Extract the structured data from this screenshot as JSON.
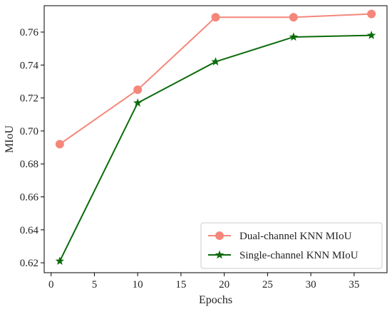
{
  "chart_data": {
    "type": "line",
    "title": "",
    "xlabel": "Epochs",
    "ylabel": "MIoU",
    "xlim": [
      -0.8,
      38.8
    ],
    "ylim": [
      0.614,
      0.776
    ],
    "xticks": [
      0,
      5,
      10,
      15,
      20,
      25,
      30,
      35
    ],
    "yticks": [
      0.62,
      0.64,
      0.66,
      0.68,
      0.7,
      0.72,
      0.74,
      0.76
    ],
    "grid": false,
    "legend_position": "lower-right",
    "series": [
      {
        "name": "Dual-channel KNN MIoU",
        "color": "#f4877a",
        "marker": "circle",
        "x": [
          1,
          10,
          19,
          28,
          37
        ],
        "y": [
          0.692,
          0.725,
          0.769,
          0.769,
          0.771
        ]
      },
      {
        "name": "Single-channel KNN MIoU",
        "color": "#0b6b0b",
        "marker": "star",
        "x": [
          1,
          10,
          19,
          28,
          37
        ],
        "y": [
          0.621,
          0.717,
          0.742,
          0.757,
          0.758
        ]
      }
    ]
  }
}
